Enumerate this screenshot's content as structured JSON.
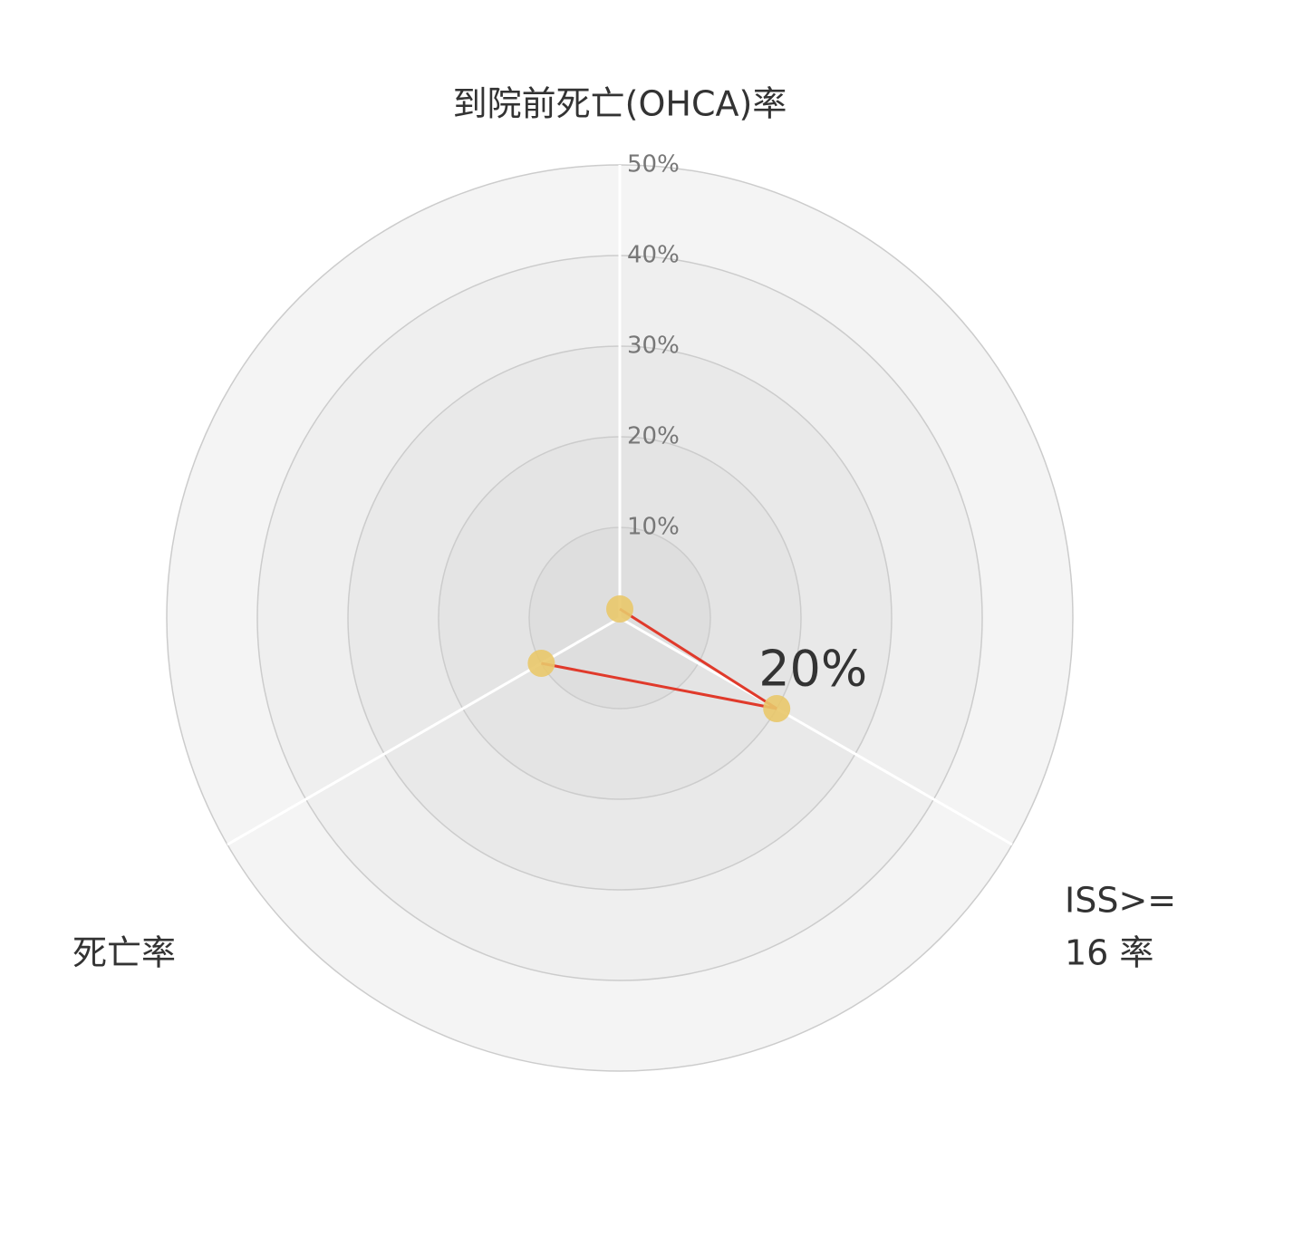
{
  "chart_data": {
    "type": "radar",
    "axes": [
      {
        "label_lines": [
          "到院前死亡(OHCA)率"
        ]
      },
      {
        "label_lines": [
          "ISS>=",
          "16 率"
        ]
      },
      {
        "label_lines": [
          "死亡率"
        ]
      }
    ],
    "rlim": [
      0,
      50
    ],
    "ticks": [
      10,
      20,
      30,
      40,
      50
    ],
    "tick_labels": [
      "10%",
      "20%",
      "30%",
      "40%",
      "50%"
    ],
    "series": [
      {
        "values": [
          1,
          20,
          10
        ],
        "line_color": "#e03a2b",
        "marker_color": "#e9c86a"
      }
    ],
    "data_labels": [
      {
        "axis_index": 1,
        "text": "20%"
      }
    ],
    "grid": true,
    "colors": {
      "ring_fill_outer": "#f4f4f4",
      "ring_fill_inner": "#dedede",
      "ring_stroke": "#cccccc",
      "spoke": "#ffffff"
    }
  }
}
